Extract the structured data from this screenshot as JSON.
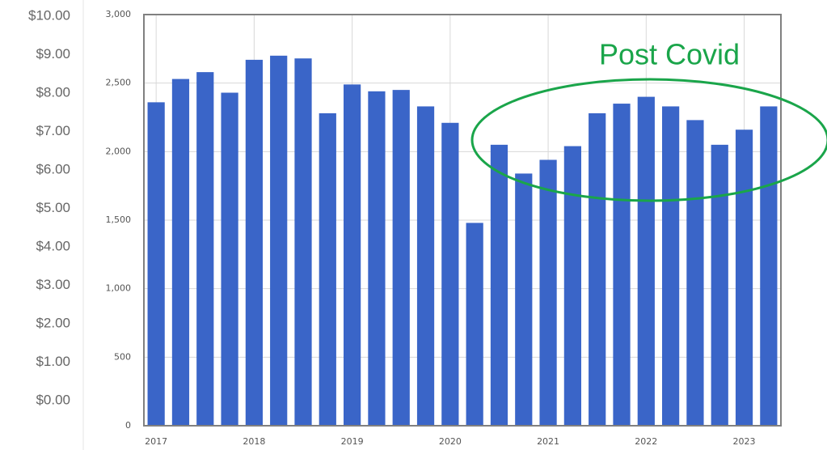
{
  "chart_data": {
    "type": "bar",
    "annotation": "Post Covid",
    "categories": [
      "2017",
      null,
      null,
      null,
      "2018",
      null,
      null,
      null,
      "2019",
      null,
      null,
      null,
      "2020",
      null,
      null,
      null,
      "2021",
      null,
      null,
      null,
      "2022",
      null,
      null,
      null,
      "2023",
      null
    ],
    "values": [
      2360,
      2530,
      2580,
      2430,
      2670,
      2700,
      2680,
      2280,
      2490,
      2440,
      2450,
      2330,
      2210,
      1480,
      2050,
      1840,
      1940,
      2040,
      2280,
      2350,
      2400,
      2330,
      2230,
      2050,
      2160,
      2330
    ],
    "color": "#3a65c8",
    "ylim": [
      0,
      3000
    ],
    "yticks": [
      0,
      500,
      {
        "value": 1000,
        "label": "1,000"
      },
      {
        "value": 1500,
        "label": "1,500"
      },
      {
        "value": 2000,
        "label": "2,000"
      },
      {
        "value": 2500,
        "label": "2,500"
      },
      {
        "value": 3000,
        "label": "3,000"
      }
    ],
    "y2lim": [
      0,
      10
    ],
    "y2ticks": [
      {
        "value": 0,
        "label": "$0.00"
      },
      {
        "value": 1,
        "label": "$1.00"
      },
      {
        "value": 2,
        "label": "$2.00"
      },
      {
        "value": 3,
        "label": "$3.00"
      },
      {
        "value": 4,
        "label": "$4.00"
      },
      {
        "value": 5,
        "label": "$5.00"
      },
      {
        "value": 6,
        "label": "$6.00"
      },
      {
        "value": 7,
        "label": "$7.00"
      },
      {
        "value": 8,
        "label": "$8.00"
      },
      {
        "value": 9,
        "label": "$9.00"
      },
      {
        "value": 10,
        "label": "$10.00"
      }
    ],
    "grid": true
  }
}
